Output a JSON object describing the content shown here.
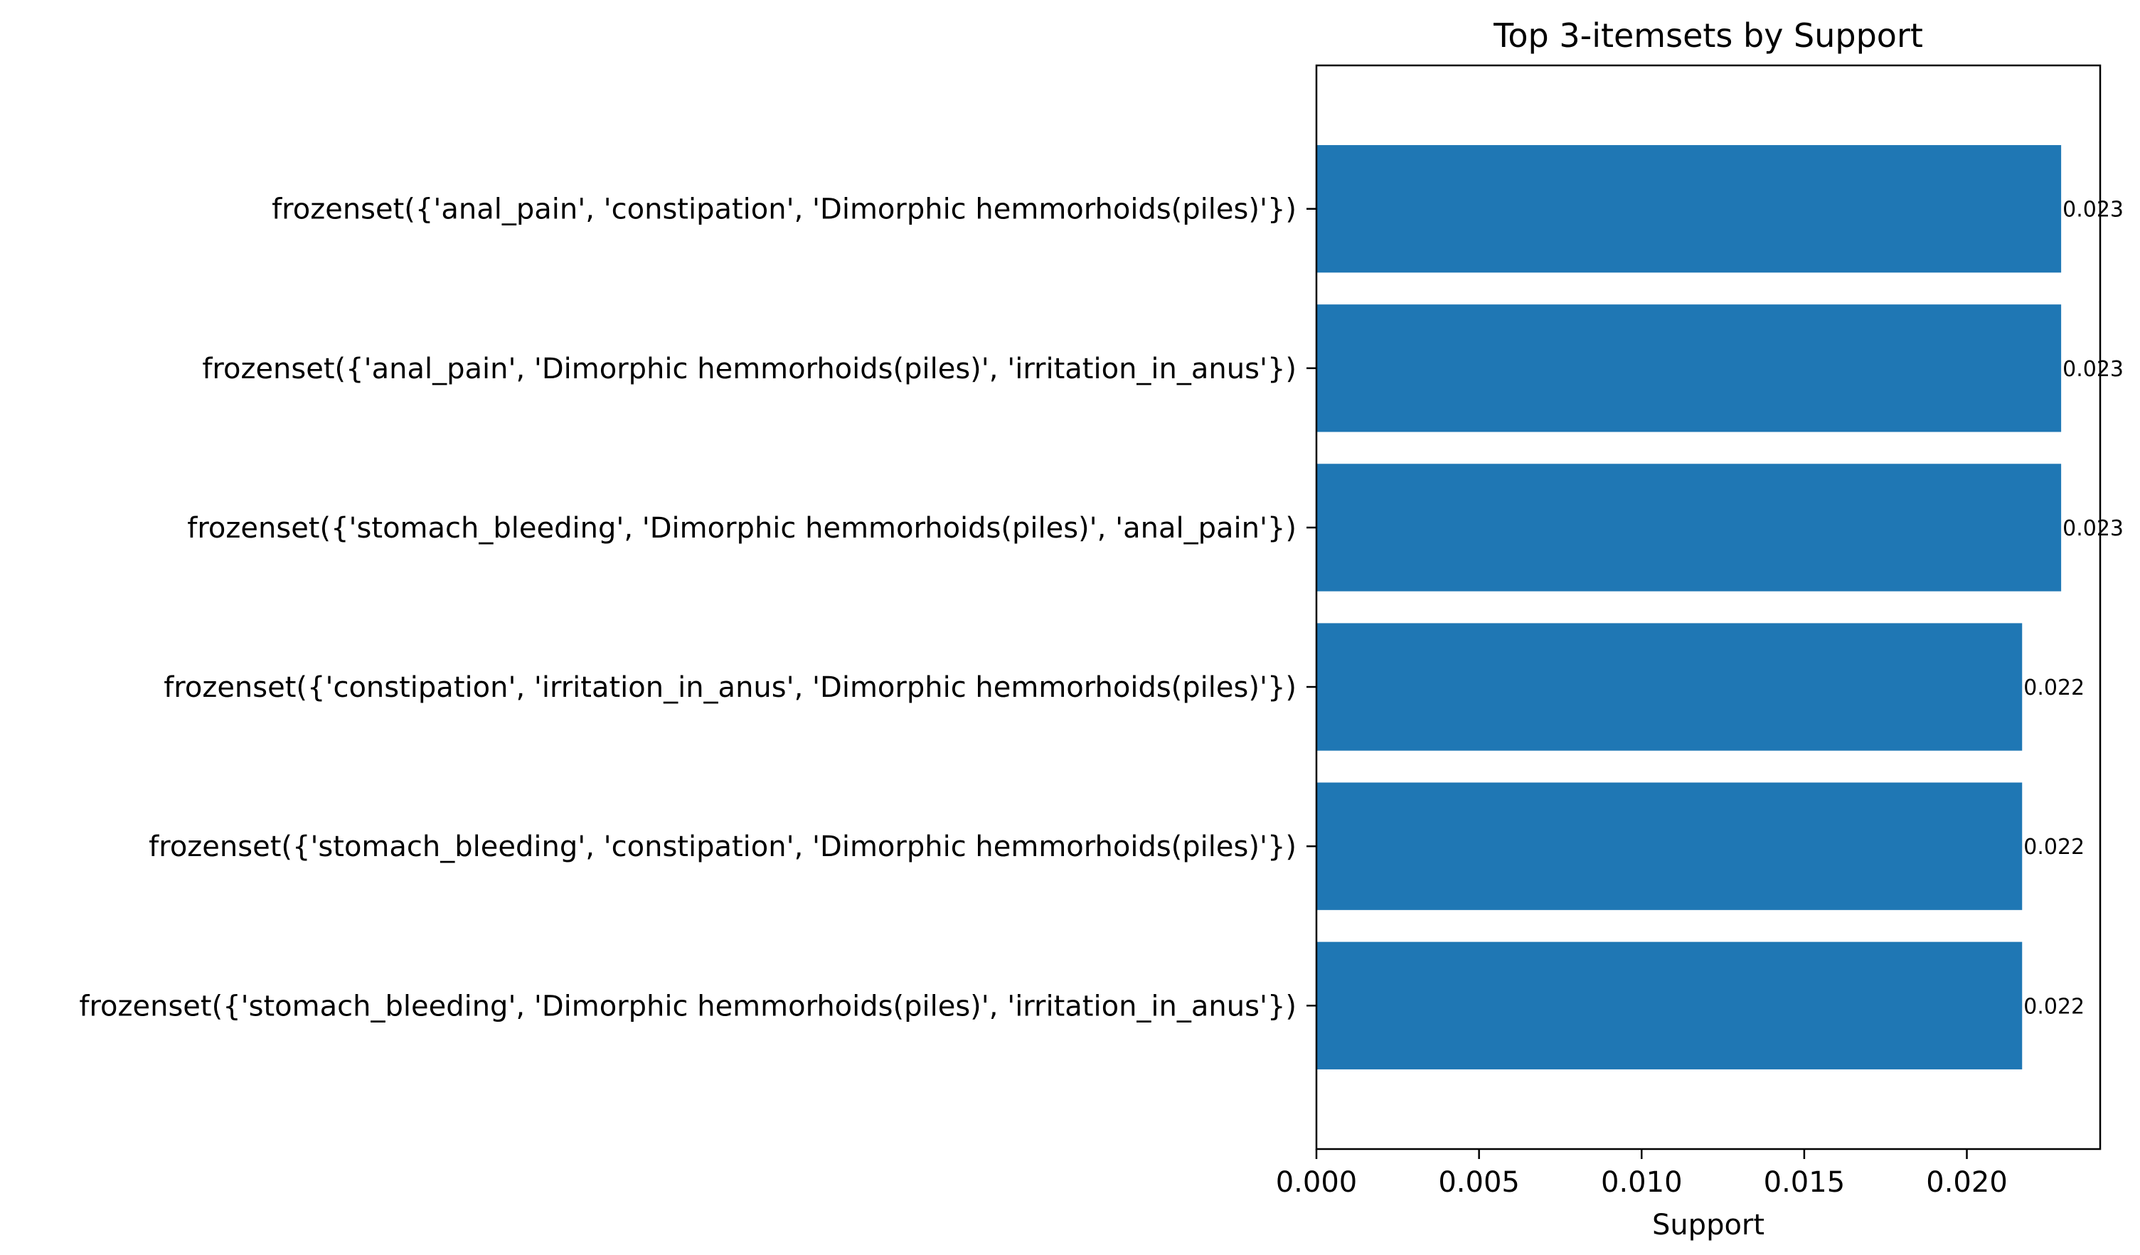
{
  "chart_data": {
    "type": "bar",
    "orientation": "horizontal",
    "title": "Top 3-itemsets by Support",
    "xlabel": "Support",
    "ylabel": "",
    "xlim": [
      0,
      0.0241
    ],
    "xticks": [
      0.0,
      0.005,
      0.01,
      0.015,
      0.02
    ],
    "xtick_labels": [
      "0.000",
      "0.005",
      "0.010",
      "0.015",
      "0.020"
    ],
    "categories": [
      "frozenset({'anal_pain', 'constipation', 'Dimorphic hemmorhoids(piles)'})",
      "frozenset({'anal_pain', 'Dimorphic hemmorhoids(piles)', 'irritation_in_anus'})",
      "frozenset({'stomach_bleeding', 'Dimorphic hemmorhoids(piles)', 'anal_pain'})",
      "frozenset({'constipation', 'irritation_in_anus', 'Dimorphic hemmorhoids(piles)'})",
      "frozenset({'stomach_bleeding', 'constipation', 'Dimorphic hemmorhoids(piles)'})",
      "frozenset({'stomach_bleeding', 'Dimorphic hemmorhoids(piles)', 'irritation_in_anus'})"
    ],
    "values": [
      0.0229,
      0.0229,
      0.0229,
      0.0217,
      0.0217,
      0.0217
    ],
    "data_labels": [
      "0.023",
      "0.023",
      "0.023",
      "0.022",
      "0.022",
      "0.022"
    ],
    "bar_color": "#1f77b4",
    "grid": false,
    "legend": "none"
  }
}
